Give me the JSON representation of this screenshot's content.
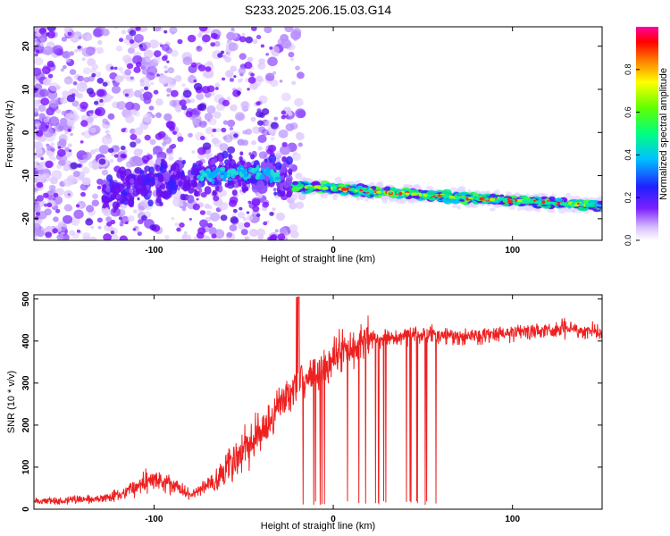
{
  "title": "S233.2025.206.15.03.G14",
  "colors": {
    "snr_line": "#ee2020",
    "axis": "#000000"
  },
  "chart_data": [
    {
      "type": "heatmap",
      "xlabel": "Height of straight line (km)",
      "ylabel": "Frequency (Hz)",
      "xlim": [
        -167,
        150
      ],
      "ylim": [
        -25,
        24.5
      ],
      "x_ticks": [
        -100,
        0,
        100
      ],
      "y_ticks": [
        -20,
        -10,
        0,
        10,
        20
      ],
      "colorbar": {
        "label": "Normalized spectral amplitude",
        "range": [
          0,
          1
        ],
        "ticks": [
          0.0,
          0.2,
          0.4,
          0.6,
          0.8
        ]
      },
      "ridge": {
        "description_points": [
          {
            "x": -125,
            "y": -14
          },
          {
            "x": -100,
            "y": -12
          },
          {
            "x": -70,
            "y": -10
          },
          {
            "x": -45,
            "y": -9
          },
          {
            "x": -25,
            "y": -11
          },
          {
            "x": -20,
            "y": -12.5
          },
          {
            "x": 0,
            "y": -13
          },
          {
            "x": 50,
            "y": -14.5
          },
          {
            "x": 100,
            "y": -15.8
          },
          {
            "x": 150,
            "y": -17
          }
        ]
      }
    },
    {
      "type": "line",
      "xlabel": "Height of straight line (km)",
      "ylabel": "SNR (10 * v/v)",
      "xlim": [
        -167,
        150
      ],
      "ylim": [
        0,
        510
      ],
      "x_ticks": [
        -100,
        0,
        100
      ],
      "y_ticks": [
        0,
        100,
        200,
        300,
        400,
        500
      ],
      "series": [
        {
          "x": [
            -167,
            -150,
            -130,
            -115,
            -100,
            -90,
            -80,
            -65,
            -50,
            -40,
            -30,
            -22,
            -20,
            -10,
            0,
            10,
            20,
            30,
            50,
            70,
            100,
            130,
            150
          ],
          "values": [
            18,
            20,
            25,
            40,
            75,
            60,
            35,
            70,
            145,
            190,
            245,
            290,
            300,
            320,
            360,
            385,
            405,
            410,
            415,
            410,
            420,
            430,
            420
          ]
        }
      ]
    }
  ]
}
